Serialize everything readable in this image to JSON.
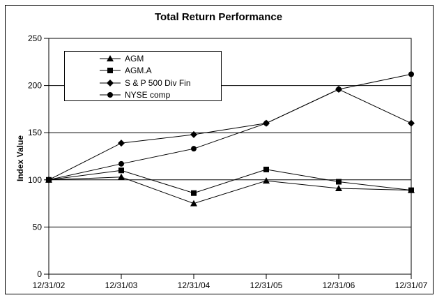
{
  "colors": {
    "foreground": "#000000",
    "background": "#ffffff"
  },
  "chart_data": {
    "type": "line",
    "title": "Total Return Performance",
    "ylabel": "Index Value",
    "xlabel": "",
    "ylim": [
      0,
      250
    ],
    "y_ticks": [
      0,
      50,
      100,
      150,
      200,
      250
    ],
    "grid": "horizontal",
    "legend_position": "upper-left-inside",
    "line_color": "#000000",
    "categories": [
      "12/31/02",
      "12/31/03",
      "12/31/04",
      "12/31/05",
      "12/31/06",
      "12/31/07"
    ],
    "series": [
      {
        "name": "AGM",
        "marker": "triangle",
        "color": "#000000",
        "values": [
          100,
          103,
          75,
          99,
          91,
          89
        ]
      },
      {
        "name": "AGM.A",
        "marker": "square",
        "color": "#000000",
        "values": [
          100,
          110,
          86,
          111,
          98,
          89
        ]
      },
      {
        "name": "S & P 500 Div Fin",
        "marker": "diamond",
        "color": "#000000",
        "values": [
          100,
          139,
          148,
          160,
          196,
          160
        ]
      },
      {
        "name": "NYSE comp",
        "marker": "circle",
        "color": "#000000",
        "values": [
          100,
          117,
          133,
          160,
          196,
          212
        ]
      }
    ]
  }
}
